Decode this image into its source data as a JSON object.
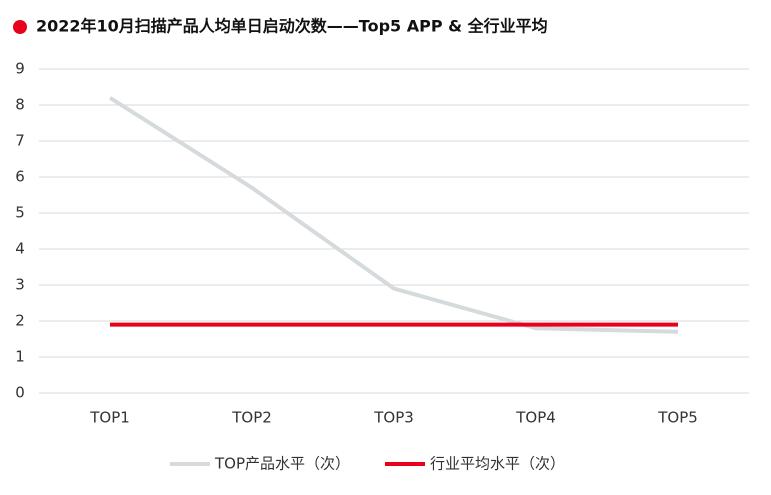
{
  "chart_data": {
    "type": "line",
    "title": "2022年10月扫描产品人均单日启动次数——Top5 APP & 全行业平均",
    "categories": [
      "TOP1",
      "TOP2",
      "TOP3",
      "TOP4",
      "TOP5"
    ],
    "series": [
      {
        "name": "TOP产品水平（次）",
        "color": "#d5dadd",
        "values": [
          8.2,
          5.7,
          2.9,
          1.8,
          1.7
        ]
      },
      {
        "name": "行业平均水平（次）",
        "color": "#e8001c",
        "values": [
          1.9,
          1.9,
          1.9,
          1.9,
          1.9
        ]
      }
    ],
    "ylim": [
      0,
      9
    ],
    "yticks": [
      0,
      1,
      2,
      3,
      4,
      5,
      6,
      7,
      8,
      9
    ],
    "grid": true,
    "legend": "bottom"
  }
}
